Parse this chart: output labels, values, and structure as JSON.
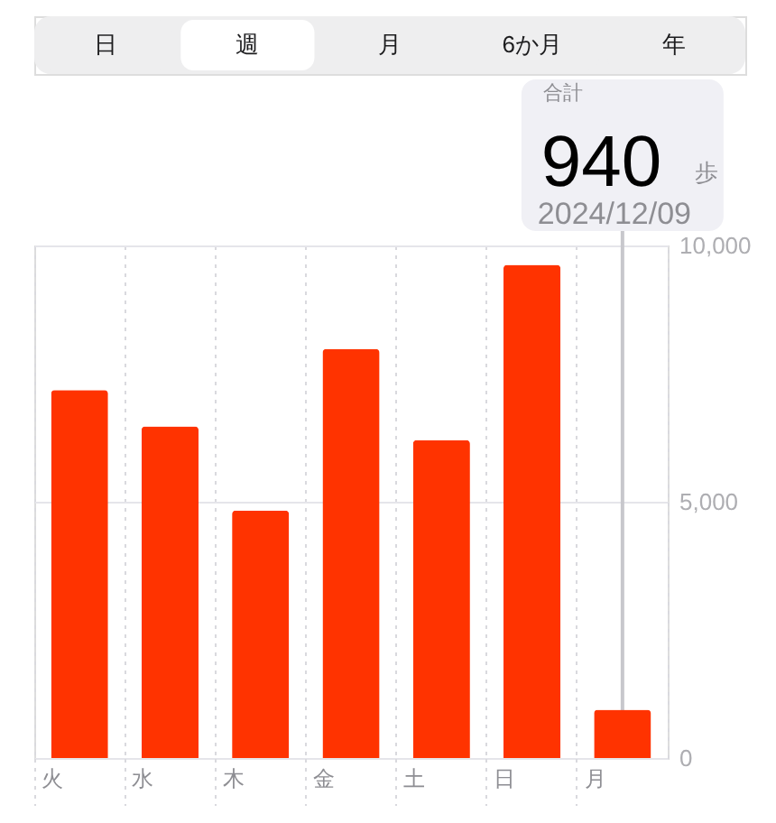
{
  "chart_data": [
    {
      "type": "other",
      "categories": [
        "日",
        "週",
        "月",
        "6か月",
        "年"
      ],
      "colors": [
        "#eeeeef",
        "#ffffff",
        "#eeeeef",
        "#eeeeef",
        "#eeeeef"
      ]
    },
    {
      "type": "bar",
      "categories": [
        "火",
        "水",
        "木",
        "金",
        "土",
        "日",
        "月"
      ],
      "values": [
        7180,
        6470,
        4830,
        7980,
        6200,
        9620,
        940
      ],
      "color": "#ff3300",
      "ylim": [
        0,
        10000
      ],
      "yticks": [
        0,
        {
          "value": 5000,
          "label": "5,000"
        },
        {
          "value": 10000,
          "label": "10,000"
        }
      ],
      "grid": true,
      "ref_lines": [
        {
          "axis": "x",
          "value": "月",
          "color": "#c7c7cc",
          "line_style": "solid"
        }
      ],
      "annotations": [
        "合計",
        "940",
        "歩",
        "2024/12/09"
      ]
    }
  ]
}
